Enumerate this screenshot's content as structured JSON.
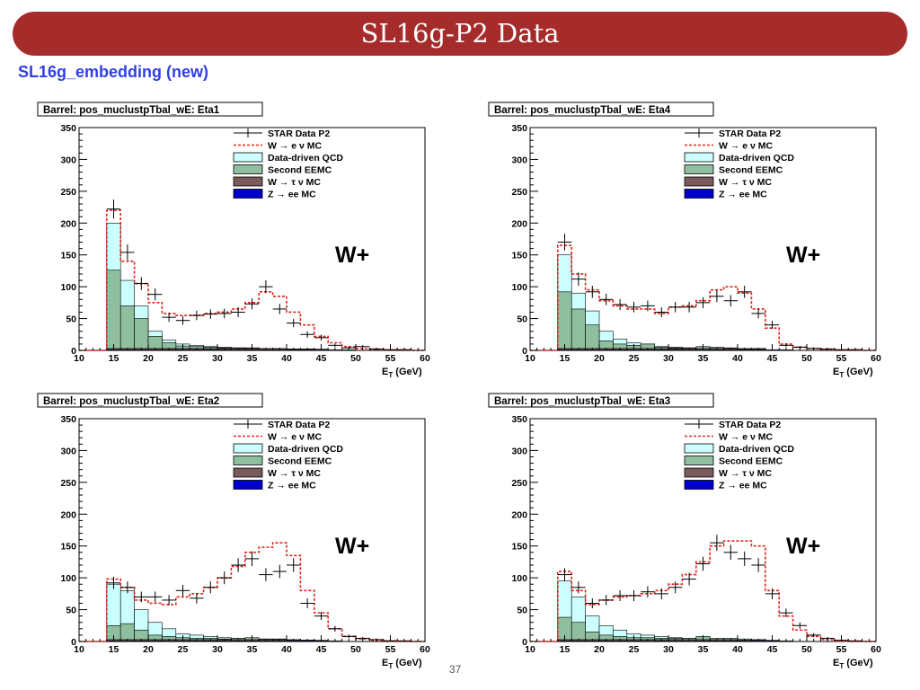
{
  "header": {
    "title": "SL16g-P2 Data"
  },
  "subtitle": "SL16g_embedding (new)",
  "page_number": "37",
  "colors": {
    "data": "#000000",
    "w_mc": "#e2231a",
    "qcd": "#ccffff",
    "eemc": "#8fbf9f",
    "wtau": "#7a5a5a",
    "zee": "#0000cc",
    "banner": "#a62c2b",
    "subtitle": "#2f3fe6"
  },
  "chart_data": [
    {
      "type": "histogram",
      "title": "Barrel: pos_muclustpTbal_wE: Eta1",
      "xlabel": "E_T (GeV)",
      "ylabel": "",
      "annotation": "W+",
      "xlim": [
        10,
        60
      ],
      "ylim": [
        0,
        350
      ],
      "xticks": [
        "10",
        "15",
        "20",
        "25",
        "30",
        "35",
        "40",
        "45",
        "50",
        "55",
        "60"
      ],
      "yticks": [
        "0",
        "50",
        "100",
        "150",
        "200",
        "250",
        "300",
        "350"
      ],
      "legend": [
        "STAR Data P2",
        "W → e ν MC",
        "Data-driven QCD",
        "Second EEMC",
        "W → τ ν MC",
        "Z → ee MC"
      ],
      "legend_position": "top-right",
      "bin_edges": [
        14,
        16,
        18,
        20,
        22,
        24,
        26,
        28,
        30,
        32,
        34,
        36,
        38,
        40,
        42,
        44,
        46,
        48,
        50,
        52,
        54,
        56,
        58,
        60
      ],
      "series": [
        {
          "name": "STAR Data P2",
          "values": [
            222,
            154,
            105,
            88,
            52,
            47,
            55,
            57,
            58,
            60,
            73,
            100,
            65,
            43,
            25,
            20,
            8,
            4,
            6,
            2,
            1,
            1,
            0
          ]
        },
        {
          "name": "W → e ν MC",
          "values": [
            220,
            140,
            105,
            75,
            58,
            55,
            55,
            58,
            60,
            65,
            75,
            92,
            85,
            60,
            40,
            22,
            12,
            6,
            3,
            2,
            1,
            1,
            0
          ]
        },
        {
          "name": "Data-driven QCD",
          "values": [
            200,
            110,
            70,
            30,
            16,
            10,
            8,
            6,
            5,
            4,
            4,
            3,
            3,
            2,
            2,
            2,
            1,
            1,
            0,
            0,
            0,
            0,
            0
          ]
        },
        {
          "name": "Second EEMC",
          "values": [
            126,
            70,
            50,
            22,
            12,
            7,
            6,
            5,
            4,
            4,
            3,
            3,
            2,
            2,
            2,
            1,
            1,
            1,
            0,
            0,
            0,
            0,
            0
          ]
        },
        {
          "name": "W → τ ν MC",
          "values": [
            3,
            3,
            3,
            3,
            3,
            3,
            3,
            3,
            3,
            3,
            3,
            3,
            3,
            2,
            2,
            1,
            1,
            0,
            0,
            0,
            0,
            0,
            0
          ]
        },
        {
          "name": "Z → ee MC",
          "values": [
            1,
            1,
            1,
            1,
            1,
            1,
            1,
            1,
            1,
            1,
            1,
            1,
            1,
            1,
            1,
            1,
            0,
            0,
            0,
            0,
            0,
            0,
            0
          ]
        }
      ]
    },
    {
      "type": "histogram",
      "title": "Barrel: pos_muclustpTbal_wE: Eta4",
      "xlabel": "E_T (GeV)",
      "ylabel": "",
      "annotation": "W+",
      "xlim": [
        10,
        60
      ],
      "ylim": [
        0,
        350
      ],
      "xticks": [
        "10",
        "15",
        "20",
        "25",
        "30",
        "35",
        "40",
        "45",
        "50",
        "55",
        "60"
      ],
      "yticks": [
        "0",
        "50",
        "100",
        "150",
        "200",
        "250",
        "300",
        "350"
      ],
      "legend": [
        "STAR Data P2",
        "W → e ν MC",
        "Data-driven QCD",
        "Second EEMC",
        "W → τ ν MC",
        "Z → ee MC"
      ],
      "legend_position": "top-right",
      "bin_edges": [
        14,
        16,
        18,
        20,
        22,
        24,
        26,
        28,
        30,
        32,
        34,
        36,
        38,
        40,
        42,
        44,
        46,
        48,
        50,
        52,
        54,
        56,
        58,
        60
      ],
      "series": [
        {
          "name": "STAR Data P2",
          "values": [
            170,
            112,
            92,
            80,
            72,
            68,
            70,
            60,
            68,
            68,
            75,
            85,
            78,
            92,
            58,
            40,
            8,
            5,
            3,
            2,
            1,
            1,
            0
          ]
        },
        {
          "name": "W → e ν MC",
          "values": [
            165,
            120,
            95,
            78,
            70,
            65,
            65,
            58,
            68,
            70,
            78,
            95,
            100,
            90,
            65,
            35,
            10,
            5,
            3,
            2,
            1,
            1,
            0
          ]
        },
        {
          "name": "Data-driven QCD",
          "values": [
            150,
            90,
            62,
            30,
            18,
            12,
            10,
            6,
            5,
            4,
            4,
            3,
            3,
            2,
            2,
            1,
            1,
            0,
            0,
            0,
            0,
            0,
            0
          ]
        },
        {
          "name": "Second EEMC",
          "values": [
            92,
            65,
            40,
            15,
            10,
            8,
            10,
            5,
            4,
            4,
            6,
            5,
            4,
            3,
            3,
            1,
            1,
            0,
            0,
            0,
            0,
            0,
            0
          ]
        },
        {
          "name": "W → τ ν MC",
          "values": [
            3,
            3,
            3,
            3,
            3,
            3,
            3,
            3,
            3,
            3,
            3,
            3,
            3,
            2,
            2,
            1,
            1,
            0,
            0,
            0,
            0,
            0,
            0
          ]
        },
        {
          "name": "Z → ee MC",
          "values": [
            1,
            1,
            1,
            1,
            1,
            1,
            1,
            1,
            1,
            1,
            1,
            1,
            1,
            1,
            1,
            1,
            0,
            0,
            0,
            0,
            0,
            0,
            0
          ]
        }
      ]
    },
    {
      "type": "histogram",
      "title": "Barrel: pos_muclustpTbal_wE: Eta2",
      "xlabel": "E_T (GeV)",
      "ylabel": "",
      "annotation": "W+",
      "xlim": [
        10,
        60
      ],
      "ylim": [
        0,
        350
      ],
      "xticks": [
        "10",
        "15",
        "20",
        "25",
        "30",
        "35",
        "40",
        "45",
        "50",
        "55",
        "60"
      ],
      "yticks": [
        "0",
        "50",
        "100",
        "150",
        "200",
        "250",
        "300",
        "350"
      ],
      "legend": [
        "STAR Data P2",
        "W → e ν MC",
        "Data-driven QCD",
        "Second EEMC",
        "W → τ ν MC",
        "Z → ee MC"
      ],
      "legend_position": "top-right",
      "bin_edges": [
        14,
        16,
        18,
        20,
        22,
        24,
        26,
        28,
        30,
        32,
        34,
        36,
        38,
        40,
        42,
        44,
        46,
        48,
        50,
        52,
        54,
        56,
        58,
        60
      ],
      "series": [
        {
          "name": "STAR Data P2",
          "values": [
            92,
            85,
            70,
            70,
            65,
            80,
            68,
            85,
            100,
            120,
            130,
            105,
            110,
            120,
            60,
            40,
            20,
            8,
            5,
            3,
            1,
            1,
            0
          ]
        },
        {
          "name": "W → e ν MC",
          "values": [
            98,
            85,
            65,
            60,
            58,
            70,
            75,
            85,
            100,
            118,
            140,
            148,
            155,
            135,
            80,
            45,
            20,
            8,
            4,
            2,
            1,
            0,
            0
          ]
        },
        {
          "name": "Data-driven QCD",
          "values": [
            90,
            80,
            50,
            30,
            20,
            12,
            10,
            8,
            6,
            5,
            4,
            3,
            2,
            2,
            2,
            1,
            1,
            0,
            0,
            0,
            0,
            0,
            0
          ]
        },
        {
          "name": "Second EEMC",
          "values": [
            25,
            28,
            18,
            10,
            8,
            6,
            5,
            5,
            4,
            5,
            6,
            4,
            4,
            3,
            2,
            2,
            1,
            0,
            0,
            0,
            0,
            0,
            0
          ]
        },
        {
          "name": "W → τ ν MC",
          "values": [
            3,
            3,
            3,
            3,
            3,
            3,
            3,
            3,
            3,
            3,
            3,
            3,
            3,
            2,
            2,
            1,
            1,
            0,
            0,
            0,
            0,
            0,
            0
          ]
        },
        {
          "name": "Z → ee MC",
          "values": [
            1,
            1,
            1,
            1,
            1,
            1,
            1,
            1,
            1,
            1,
            1,
            1,
            1,
            1,
            1,
            1,
            0,
            0,
            0,
            0,
            0,
            0,
            0
          ]
        }
      ]
    },
    {
      "type": "histogram",
      "title": "Barrel: pos_muclustpTbal_wE: Eta3",
      "xlabel": "E_T (GeV)",
      "ylabel": "",
      "annotation": "W+",
      "xlim": [
        10,
        60
      ],
      "ylim": [
        0,
        350
      ],
      "xticks": [
        "10",
        "15",
        "20",
        "25",
        "30",
        "35",
        "40",
        "45",
        "50",
        "55",
        "60"
      ],
      "yticks": [
        "0",
        "50",
        "100",
        "150",
        "200",
        "250",
        "300",
        "350"
      ],
      "legend": [
        "STAR Data P2",
        "W → e ν MC",
        "Data-driven QCD",
        "Second EEMC",
        "W → τ ν MC",
        "Z → ee MC"
      ],
      "legend_position": "top-right",
      "bin_edges": [
        14,
        16,
        18,
        20,
        22,
        24,
        26,
        28,
        30,
        32,
        34,
        36,
        38,
        40,
        42,
        44,
        46,
        48,
        50,
        52,
        54,
        56,
        58,
        60
      ],
      "series": [
        {
          "name": "STAR Data P2",
          "values": [
            105,
            85,
            60,
            65,
            72,
            72,
            78,
            75,
            85,
            98,
            122,
            155,
            140,
            130,
            120,
            75,
            45,
            25,
            10,
            5,
            2,
            1,
            0
          ]
        },
        {
          "name": "W → e ν MC",
          "values": [
            110,
            80,
            58,
            65,
            70,
            72,
            75,
            80,
            90,
            105,
            125,
            150,
            158,
            158,
            150,
            80,
            40,
            18,
            8,
            3,
            1,
            0,
            0
          ]
        },
        {
          "name": "Data-driven QCD",
          "values": [
            95,
            70,
            40,
            25,
            18,
            12,
            10,
            8,
            6,
            5,
            4,
            3,
            2,
            2,
            2,
            1,
            1,
            0,
            0,
            0,
            0,
            0,
            0
          ]
        },
        {
          "name": "Second EEMC",
          "values": [
            38,
            30,
            15,
            10,
            8,
            6,
            6,
            5,
            5,
            5,
            8,
            5,
            5,
            4,
            3,
            2,
            1,
            0,
            0,
            0,
            0,
            0,
            0
          ]
        },
        {
          "name": "W → τ ν MC",
          "values": [
            3,
            3,
            3,
            3,
            3,
            3,
            3,
            3,
            3,
            3,
            3,
            3,
            3,
            2,
            2,
            1,
            1,
            0,
            0,
            0,
            0,
            0,
            0
          ]
        },
        {
          "name": "Z → ee MC",
          "values": [
            1,
            1,
            1,
            1,
            1,
            1,
            1,
            1,
            1,
            1,
            1,
            1,
            1,
            1,
            1,
            1,
            0,
            0,
            0,
            0,
            0,
            0,
            0
          ]
        }
      ]
    }
  ]
}
